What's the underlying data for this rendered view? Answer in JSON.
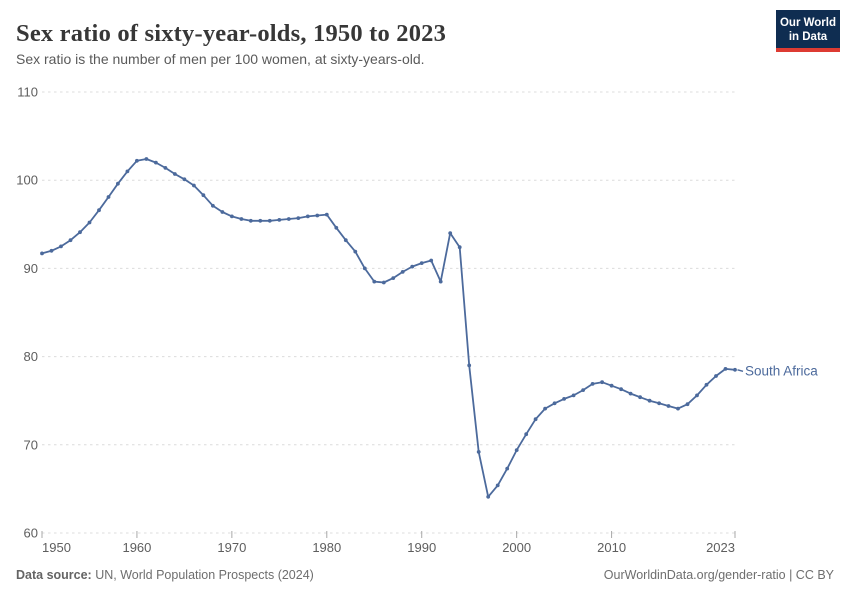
{
  "header": {
    "title": "Sex ratio of sixty-year-olds, 1950 to 2023",
    "subtitle": "Sex ratio is the number of men per 100 women, at sixty-years-old.",
    "logo_line1": "Our World",
    "logo_line2": "in Data",
    "logo_bg_color": "#0f2d51",
    "logo_bar_color": "#dd3b32"
  },
  "footer": {
    "source_label": "Data source:",
    "source_text": " UN, World Population Prospects (2024)",
    "credit": "OurWorldinData.org/gender-ratio | CC BY"
  },
  "chart_data": {
    "type": "line",
    "title": "Sex ratio of sixty-year-olds, 1950 to 2023",
    "subtitle": "Sex ratio is the number of men per 100 women, at sixty-years-old.",
    "xlabel": "",
    "ylabel": "",
    "xlim": [
      1950,
      2023
    ],
    "ylim": [
      60,
      110
    ],
    "xticks": [
      1950,
      1960,
      1970,
      1980,
      1990,
      2000,
      2010,
      2023
    ],
    "yticks": [
      60,
      70,
      80,
      90,
      100,
      110
    ],
    "grid": "horizontal-dashed",
    "legend_position": "end-of-line-label",
    "line_color": "#4c6a9c",
    "grid_color": "#dcdcdc",
    "tick_text_color": "#5e5e5e",
    "series": [
      {
        "name": "South Africa",
        "color": "#4c6a9c",
        "x": [
          1950,
          1951,
          1952,
          1953,
          1954,
          1955,
          1956,
          1957,
          1958,
          1959,
          1960,
          1961,
          1962,
          1963,
          1964,
          1965,
          1966,
          1967,
          1968,
          1969,
          1970,
          1971,
          1972,
          1973,
          1974,
          1975,
          1976,
          1977,
          1978,
          1979,
          1980,
          1981,
          1982,
          1983,
          1984,
          1985,
          1986,
          1987,
          1988,
          1989,
          1990,
          1991,
          1992,
          1993,
          1994,
          1995,
          1996,
          1997,
          1998,
          1999,
          2000,
          2001,
          2002,
          2003,
          2004,
          2005,
          2006,
          2007,
          2008,
          2009,
          2010,
          2011,
          2012,
          2013,
          2014,
          2015,
          2016,
          2017,
          2018,
          2019,
          2020,
          2021,
          2022,
          2023
        ],
        "values": [
          91.7,
          92.0,
          92.5,
          93.2,
          94.1,
          95.2,
          96.6,
          98.1,
          99.6,
          101.0,
          102.2,
          102.4,
          102.0,
          101.4,
          100.7,
          100.1,
          99.4,
          98.3,
          97.1,
          96.4,
          95.9,
          95.6,
          95.4,
          95.4,
          95.4,
          95.5,
          95.6,
          95.7,
          95.9,
          96.0,
          96.1,
          94.6,
          93.2,
          91.9,
          90.0,
          88.5,
          88.4,
          88.9,
          89.6,
          90.2,
          90.6,
          90.9,
          88.5,
          94.0,
          92.4,
          79.0,
          69.2,
          64.1,
          65.4,
          67.3,
          69.4,
          71.2,
          72.9,
          74.1,
          74.7,
          75.2,
          75.6,
          76.2,
          76.9,
          77.1,
          76.7,
          76.3,
          75.8,
          75.4,
          75.0,
          74.7,
          74.4,
          74.1,
          74.6,
          75.6,
          76.8,
          77.8,
          78.6,
          78.5
        ]
      }
    ]
  }
}
